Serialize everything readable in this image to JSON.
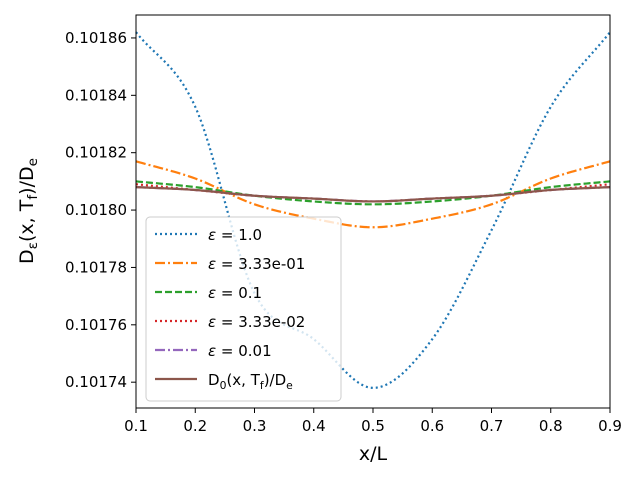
{
  "chart_data": {
    "type": "line",
    "title": "",
    "xlabel": "x/L",
    "ylabel": "D_ε(x, T_f)/D_e",
    "xlim": [
      0.1,
      0.9
    ],
    "ylim": [
      0.101731,
      0.101868
    ],
    "grid": false,
    "legend_position": "lower-left",
    "xticks": [
      0.1,
      0.2,
      0.3,
      0.4,
      0.5,
      0.6,
      0.7,
      0.8,
      0.9
    ],
    "xtick_labels": [
      "0.1",
      "0.2",
      "0.3",
      "0.4",
      "0.5",
      "0.6",
      "0.7",
      "0.8",
      "0.9"
    ],
    "yticks": [
      0.10174,
      0.10176,
      0.10178,
      0.1018,
      0.10182,
      0.10184,
      0.10186
    ],
    "ytick_labels": [
      "0.10174",
      "0.10176",
      "0.10178",
      "0.10180",
      "0.10182",
      "0.10184",
      "0.10186"
    ],
    "series": [
      {
        "name": "ε = 1.0",
        "label_prefix": "ε",
        "label_value": " = 1.0",
        "style": "dotted",
        "color": "#1f77b4",
        "x": [
          0.1,
          0.2,
          0.3,
          0.4,
          0.5,
          0.6,
          0.7,
          0.8,
          0.9
        ],
        "y": [
          0.101862,
          0.101836,
          0.101771,
          0.101755,
          0.101738,
          0.101755,
          0.101793,
          0.101836,
          0.101862
        ]
      },
      {
        "name": "ε = 3.33e-01",
        "label_prefix": "ε",
        "label_value": " = 3.33e-01",
        "style": "dashdot",
        "color": "#ff7f0e",
        "x": [
          0.1,
          0.2,
          0.3,
          0.4,
          0.5,
          0.6,
          0.7,
          0.8,
          0.9
        ],
        "y": [
          0.101817,
          0.101811,
          0.101802,
          0.101797,
          0.101794,
          0.101797,
          0.101802,
          0.101811,
          0.101817
        ]
      },
      {
        "name": "ε = 0.1",
        "label_prefix": "ε",
        "label_value": " = 0.1",
        "style": "dashed",
        "color": "#2ca02c",
        "x": [
          0.1,
          0.2,
          0.3,
          0.4,
          0.5,
          0.6,
          0.7,
          0.8,
          0.9
        ],
        "y": [
          0.10181,
          0.101808,
          0.101805,
          0.101803,
          0.101802,
          0.101803,
          0.101805,
          0.101808,
          0.10181
        ]
      },
      {
        "name": "ε = 3.33e-02",
        "label_prefix": "ε",
        "label_value": " = 3.33e-02",
        "style": "dotted",
        "color": "#d62728",
        "x": [
          0.1,
          0.2,
          0.3,
          0.4,
          0.5,
          0.6,
          0.7,
          0.8,
          0.9
        ],
        "y": [
          0.101809,
          0.101807,
          0.101805,
          0.101804,
          0.101803,
          0.101804,
          0.101805,
          0.101807,
          0.101809
        ]
      },
      {
        "name": "ε = 0.01",
        "label_prefix": "ε",
        "label_value": " = 0.01",
        "style": "dashdot",
        "color": "#9467bd",
        "x": [
          0.1,
          0.2,
          0.3,
          0.4,
          0.5,
          0.6,
          0.7,
          0.8,
          0.9
        ],
        "y": [
          0.101808,
          0.101807,
          0.101805,
          0.101804,
          0.101803,
          0.101804,
          0.101805,
          0.101807,
          0.101808
        ]
      },
      {
        "name": "D_0(x, T_f)/D_e",
        "label_prefix": "D",
        "label_value": "(x, T_f)/D_e",
        "style": "solid",
        "color": "#8c564b",
        "x": [
          0.1,
          0.2,
          0.3,
          0.4,
          0.5,
          0.6,
          0.7,
          0.8,
          0.9
        ],
        "y": [
          0.101808,
          0.101807,
          0.101805,
          0.101804,
          0.101803,
          0.101804,
          0.101805,
          0.101807,
          0.101808
        ]
      }
    ]
  }
}
